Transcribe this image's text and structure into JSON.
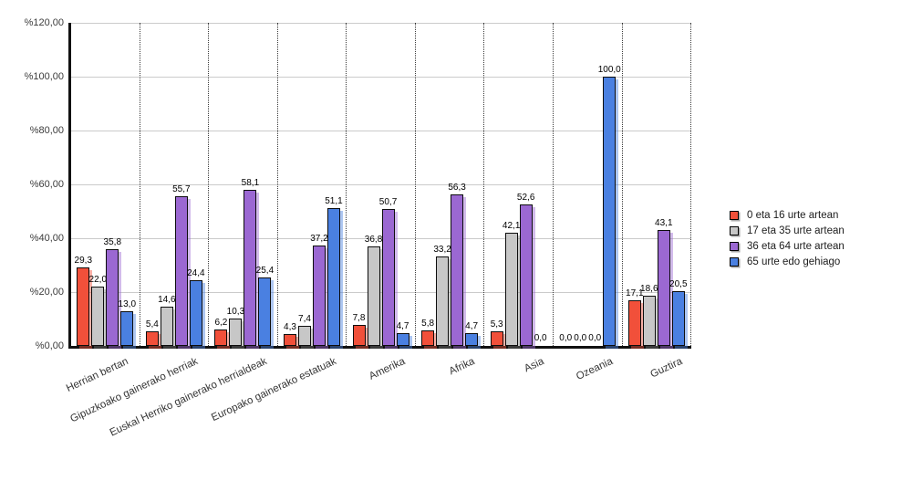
{
  "chart_data": {
    "type": "bar",
    "title": "",
    "xlabel": "",
    "ylabel": "",
    "ylim": [
      0,
      120
    ],
    "ytick_step": 20,
    "ytick_values": [
      0,
      20,
      40,
      60,
      80,
      100,
      120
    ],
    "ytick_labels": [
      "%0,00",
      "%20,00",
      "%40,00",
      "%60,00",
      "%80,00",
      "%100,00",
      "%120,00"
    ],
    "grid": "horizontal-solid-and-vertical-dotted-separators",
    "legend_position": "right",
    "categories": [
      "Herrian bertan",
      "Gipuzkoako gainerako herriak",
      "Euskal Herriko gainerako herrialdeak",
      "Europako gainerako estatuak",
      "Amerika",
      "Afrika",
      "Asia",
      "Ozeania",
      "Guztira"
    ],
    "series": [
      {
        "name": "0 eta 16 urte artean",
        "color": "#f1503a",
        "shadow_color": "rgba(241,80,58,0.45)",
        "values": [
          29.3,
          5.4,
          6.2,
          4.3,
          7.8,
          5.8,
          5.3,
          0.0,
          17.1
        ],
        "labels": [
          "29,3",
          "5,4",
          "6,2",
          "4,3",
          "7,8",
          "5,8",
          "5,3",
          "0,0",
          "17,1"
        ]
      },
      {
        "name": "17 eta 35 urte artean",
        "color": "#c7c7c7",
        "shadow_color": "rgba(125,125,125,0.40)",
        "values": [
          22.0,
          14.6,
          10.3,
          7.4,
          36.8,
          33.2,
          42.1,
          0.0,
          18.6
        ],
        "labels": [
          "22,0",
          "14,6",
          "10,3",
          "7,4",
          "36,8",
          "33,2",
          "42,1",
          "0,0",
          "18,6"
        ]
      },
      {
        "name": "36 eta 64 urte artean",
        "color": "#9b68d2",
        "shadow_color": "rgba(155,104,210,0.45)",
        "values": [
          35.8,
          55.7,
          58.1,
          37.2,
          50.7,
          56.3,
          52.6,
          0.0,
          43.1
        ],
        "labels": [
          "35,8",
          "55,7",
          "58,1",
          "37,2",
          "50,7",
          "56,3",
          "52,6",
          "0,0",
          "43,1"
        ]
      },
      {
        "name": "65 urte edo gehiago",
        "color": "#4a80e1",
        "shadow_color": "rgba(74,128,225,0.45)",
        "values": [
          13.0,
          24.4,
          25.4,
          51.1,
          4.7,
          4.7,
          0.0,
          100.0,
          20.5
        ],
        "labels": [
          "13,0",
          "24,4",
          "25,4",
          "51,1",
          "4,7",
          "4,7",
          "0,0",
          "100,0",
          "20,5"
        ]
      }
    ]
  }
}
